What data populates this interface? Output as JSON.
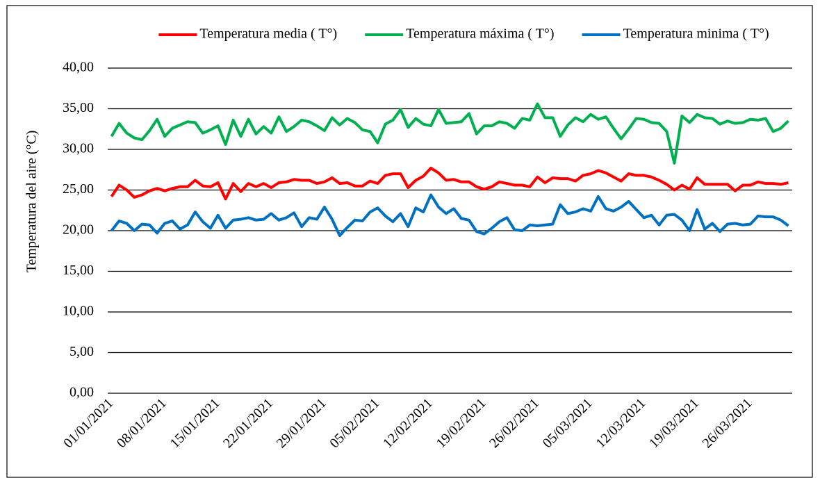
{
  "chart_data": {
    "type": "line",
    "y_label": "Temperatura del aire  (°C)",
    "categories": [
      "01/01/2021",
      null,
      null,
      null,
      null,
      null,
      null,
      "08/01/2021",
      null,
      null,
      null,
      null,
      null,
      null,
      "15/01/2021",
      null,
      null,
      null,
      null,
      null,
      null,
      "22/01/2021",
      null,
      null,
      null,
      null,
      null,
      null,
      "29/01/2021",
      null,
      null,
      null,
      null,
      null,
      null,
      "05/02/2021",
      null,
      null,
      null,
      null,
      null,
      null,
      "12/02/2021",
      null,
      null,
      null,
      null,
      null,
      null,
      "19/02/2021",
      null,
      null,
      null,
      null,
      null,
      null,
      "26/02/2021",
      null,
      null,
      null,
      null,
      null,
      null,
      "05/03/2021",
      null,
      null,
      null,
      null,
      null,
      null,
      "12/03/2021",
      null,
      null,
      null,
      null,
      null,
      null,
      "19/03/2021",
      null,
      null,
      null,
      null,
      null,
      null,
      "26/03/2021",
      null,
      null,
      null,
      null,
      null
    ],
    "series": [
      {
        "name": "Temperatura media ( T°)",
        "color": "#ff0000",
        "values": [
          24.2,
          25.6,
          25.0,
          24.1,
          24.4,
          24.9,
          25.2,
          24.9,
          25.2,
          25.4,
          25.4,
          26.2,
          25.5,
          25.4,
          25.9,
          23.9,
          25.8,
          24.8,
          25.8,
          25.4,
          25.8,
          25.3,
          25.9,
          26.0,
          26.3,
          26.2,
          26.2,
          25.8,
          26.0,
          26.5,
          25.8,
          25.9,
          25.5,
          25.5,
          26.1,
          25.8,
          26.8,
          27.0,
          27.0,
          25.3,
          26.2,
          26.7,
          27.7,
          27.1,
          26.2,
          26.3,
          26.0,
          26.0,
          25.4,
          25.1,
          25.4,
          26.0,
          25.8,
          25.6,
          25.6,
          25.4,
          26.6,
          25.9,
          26.5,
          26.4,
          26.4,
          26.1,
          26.8,
          27.0,
          27.4,
          27.1,
          26.6,
          26.1,
          27.0,
          26.8,
          26.8,
          26.6,
          26.2,
          25.7,
          25.0,
          25.6,
          25.1,
          26.5,
          25.7,
          25.7,
          25.7,
          25.7,
          24.9,
          25.6,
          25.6,
          26.0,
          25.8,
          25.8,
          25.7,
          25.9
        ]
      },
      {
        "name": "Temperatura máxima ( T°)",
        "color": "#00b050",
        "values": [
          31.6,
          33.2,
          32.0,
          31.4,
          31.2,
          32.3,
          33.7,
          31.6,
          32.6,
          33.0,
          33.4,
          33.3,
          32.0,
          32.4,
          32.9,
          30.6,
          33.6,
          31.6,
          33.7,
          31.9,
          32.8,
          32.0,
          34.0,
          32.2,
          32.8,
          33.6,
          33.4,
          32.9,
          32.3,
          33.9,
          33.0,
          33.8,
          33.3,
          32.4,
          32.2,
          30.8,
          33.1,
          33.6,
          34.9,
          32.7,
          33.8,
          33.1,
          32.9,
          34.9,
          33.2,
          33.3,
          33.4,
          34.4,
          31.9,
          32.9,
          32.9,
          33.4,
          33.2,
          32.6,
          33.8,
          33.6,
          35.6,
          33.9,
          33.9,
          31.6,
          33.0,
          33.9,
          33.4,
          34.3,
          33.7,
          34.0,
          32.6,
          31.3,
          32.5,
          33.8,
          33.7,
          33.3,
          33.2,
          32.2,
          28.3,
          34.1,
          33.3,
          34.3,
          33.9,
          33.8,
          33.1,
          33.5,
          33.2,
          33.3,
          33.7,
          33.6,
          33.8,
          32.2,
          32.6,
          33.5
        ]
      },
      {
        "name": "Temperatura minima ( T°)",
        "color": "#0070c0",
        "values": [
          20.0,
          21.2,
          20.9,
          20.0,
          20.8,
          20.7,
          19.7,
          20.9,
          21.2,
          20.2,
          20.7,
          22.3,
          21.1,
          20.3,
          21.9,
          20.3,
          21.3,
          21.4,
          21.6,
          21.3,
          21.4,
          22.1,
          21.3,
          21.6,
          22.2,
          20.5,
          21.6,
          21.4,
          22.9,
          21.4,
          19.4,
          20.4,
          21.3,
          21.2,
          22.3,
          22.8,
          21.8,
          21.1,
          22.1,
          20.5,
          22.8,
          22.3,
          24.4,
          22.9,
          22.1,
          22.7,
          21.5,
          21.3,
          19.9,
          19.6,
          20.3,
          21.1,
          21.6,
          20.1,
          20.0,
          20.7,
          20.6,
          20.7,
          20.8,
          23.2,
          22.1,
          22.3,
          22.7,
          22.4,
          24.2,
          22.7,
          22.4,
          22.9,
          23.6,
          22.6,
          21.6,
          21.9,
          20.7,
          21.9,
          22.0,
          21.3,
          20.0,
          22.6,
          20.2,
          20.9,
          19.9,
          20.8,
          20.9,
          20.7,
          20.8,
          21.8,
          21.7,
          21.7,
          21.3,
          20.6
        ]
      }
    ],
    "ylim": [
      0,
      40
    ],
    "yticks": [
      {
        "value": 0,
        "label": "0,00"
      },
      {
        "value": 5,
        "label": "5,00"
      },
      {
        "value": 10,
        "label": "10,00"
      },
      {
        "value": 15,
        "label": "15,00"
      },
      {
        "value": 20,
        "label": "20,00"
      },
      {
        "value": 25,
        "label": "25,00"
      },
      {
        "value": 30,
        "label": "30,00"
      },
      {
        "value": 35,
        "label": "35,00"
      },
      {
        "value": 40,
        "label": "40,00"
      }
    ],
    "grid": true,
    "legend": "top"
  }
}
